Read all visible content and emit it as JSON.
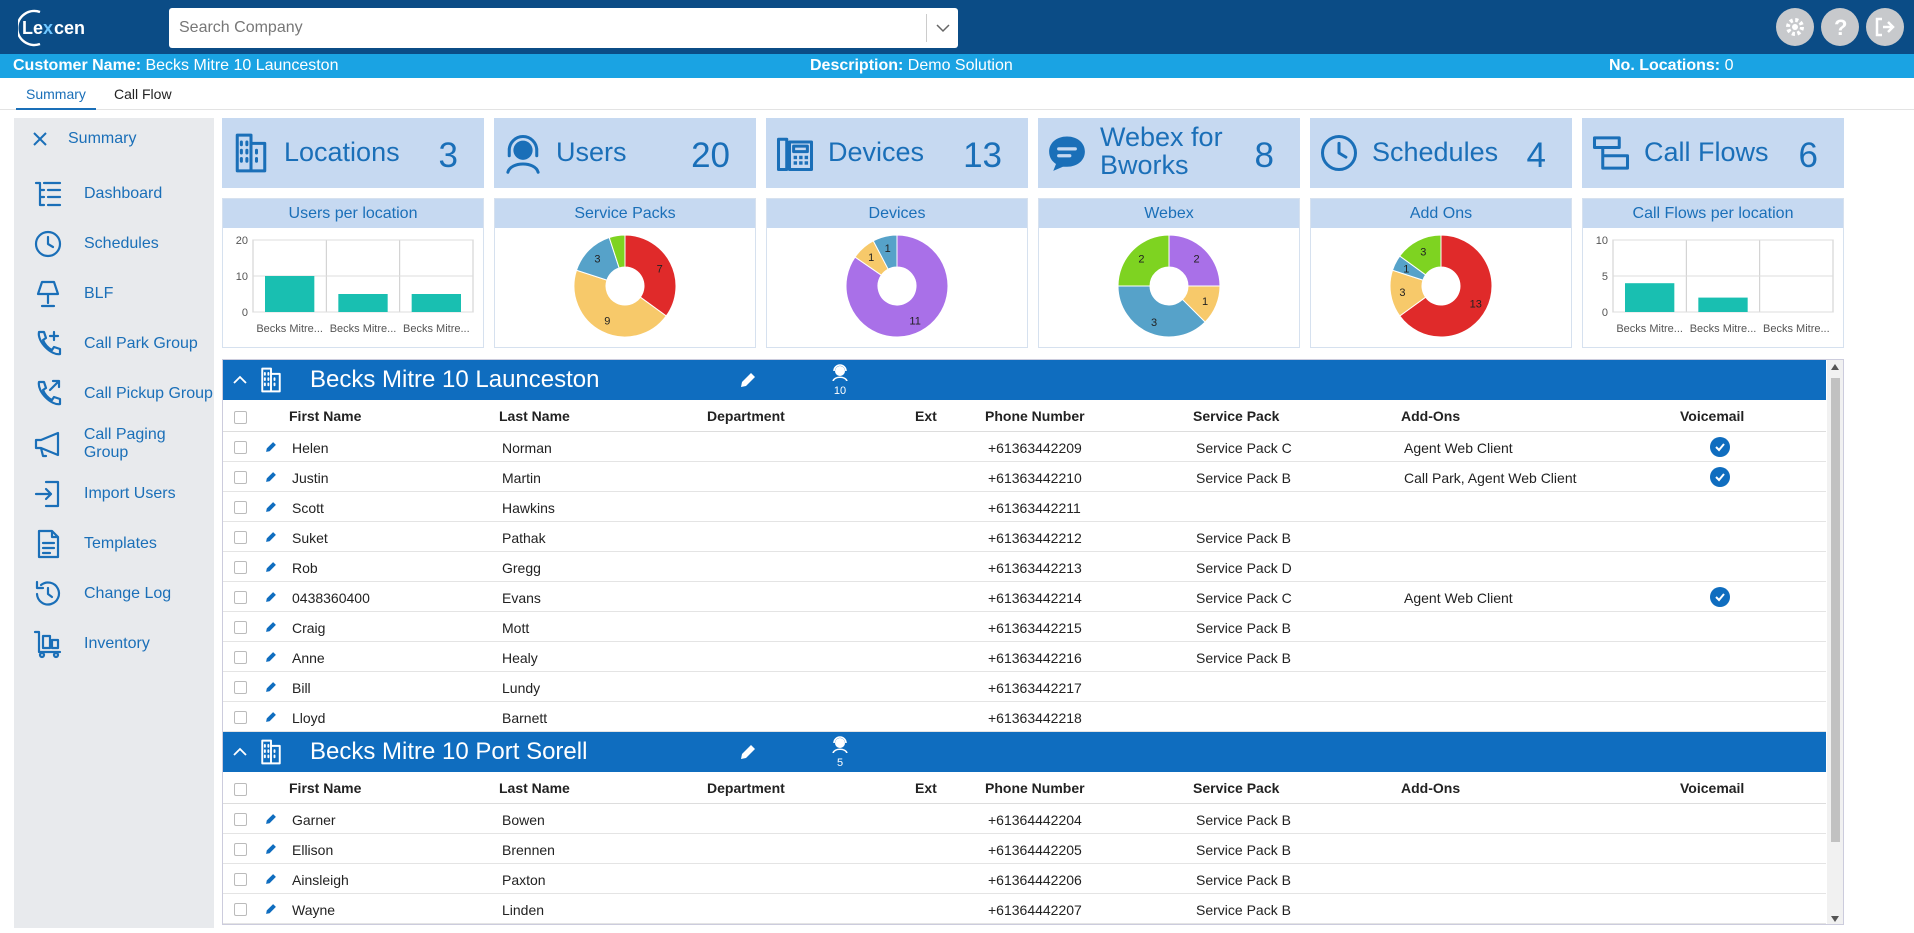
{
  "app": {
    "logo_text": "Lexcen"
  },
  "search": {
    "placeholder": "Search Company"
  },
  "infobar": {
    "customer_key": "Customer Name:",
    "customer_val": "Becks Mitre 10 Launceston",
    "desc_key": "Description:",
    "desc_val": "Demo Solution",
    "loc_key": "No. Locations:",
    "loc_val": "0"
  },
  "tabs": [
    "Summary",
    "Call Flow"
  ],
  "sidebar": {
    "header": "Summary",
    "items": [
      {
        "label": "Dashboard",
        "icon": "dashboard-icon"
      },
      {
        "label": "Schedules",
        "icon": "clock-icon"
      },
      {
        "label": "BLF",
        "icon": "lamp-icon"
      },
      {
        "label": "Call Park Group",
        "icon": "phone-plus-icon"
      },
      {
        "label": "Call Pickup Group",
        "icon": "phone-arrow-icon"
      },
      {
        "label": "Call Paging Group",
        "icon": "megaphone-icon"
      },
      {
        "label": "Import Users",
        "icon": "import-icon"
      },
      {
        "label": "Templates",
        "icon": "document-icon"
      },
      {
        "label": "Change Log",
        "icon": "history-icon"
      },
      {
        "label": "Inventory",
        "icon": "trolley-icon"
      }
    ]
  },
  "cards": [
    {
      "label": "Locations",
      "value": "3",
      "icon": "building-icon"
    },
    {
      "label": "Users",
      "value": "20",
      "icon": "headset-user-icon"
    },
    {
      "label": "Devices",
      "value": "13",
      "icon": "desk-phone-icon"
    },
    {
      "label": "Webex for Bworks",
      "value": "8",
      "icon": "chat-icon"
    },
    {
      "label": "Schedules",
      "value": "4",
      "icon": "clock-icon"
    },
    {
      "label": "Call Flows",
      "value": "6",
      "icon": "call-flow-icon"
    }
  ],
  "chart_data": [
    {
      "type": "bar",
      "title": "Users per location",
      "categories": [
        "Becks Mitre...",
        "Becks Mitre...",
        "Becks Mitre..."
      ],
      "values": [
        10,
        5,
        5
      ],
      "ylim": [
        0,
        20
      ],
      "yticks": [
        0,
        10,
        20
      ],
      "color": "#19bfb1"
    },
    {
      "type": "pie",
      "title": "Service Packs",
      "values": [
        7,
        9,
        3,
        1
      ],
      "labels": [
        "7",
        "9",
        "3",
        ""
      ],
      "colors": [
        "#e02a2a",
        "#f7c96a",
        "#56a2c9",
        "#7ed321"
      ]
    },
    {
      "type": "pie",
      "title": "Devices",
      "values": [
        11,
        1,
        1
      ],
      "labels": [
        "11",
        "1",
        "1"
      ],
      "colors": [
        "#a970e8",
        "#f7c96a",
        "#56a2c9"
      ]
    },
    {
      "type": "pie",
      "title": "Webex",
      "values": [
        2,
        1,
        3,
        2
      ],
      "labels": [
        "2",
        "1",
        "3",
        "2"
      ],
      "colors": [
        "#a970e8",
        "#f7c96a",
        "#56a2c9",
        "#7ed321"
      ]
    },
    {
      "type": "pie",
      "title": "Add Ons",
      "values": [
        13,
        3,
        1,
        3
      ],
      "labels": [
        "13",
        "3",
        "1",
        "3"
      ],
      "colors": [
        "#e02a2a",
        "#f7c96a",
        "#56a2c9",
        "#7ed321"
      ]
    },
    {
      "type": "bar",
      "title": "Call Flows per location",
      "categories": [
        "Becks Mitre...",
        "Becks Mitre...",
        "Becks Mitre..."
      ],
      "values": [
        4,
        2,
        0
      ],
      "ylim": [
        0,
        10
      ],
      "yticks": [
        0,
        5,
        10
      ],
      "color": "#19bfb1"
    }
  ],
  "grid": {
    "columns": [
      "First Name",
      "Last Name",
      "Department",
      "Ext",
      "Phone Number",
      "Service Pack",
      "Add-Ons",
      "Voicemail"
    ],
    "locations": [
      {
        "name": "Becks Mitre 10 Launceston",
        "users": "10",
        "rows": [
          {
            "first": "Helen",
            "last": "Norman",
            "dept": "",
            "ext": "",
            "phone": "+61363442209",
            "pack": "Service Pack C",
            "addons": "Agent Web Client",
            "vm": true
          },
          {
            "first": "Justin",
            "last": "Martin",
            "dept": "",
            "ext": "",
            "phone": "+61363442210",
            "pack": "Service Pack B",
            "addons": "Call Park, Agent Web Client",
            "vm": true
          },
          {
            "first": "Scott",
            "last": "Hawkins",
            "dept": "",
            "ext": "",
            "phone": "+61363442211",
            "pack": "",
            "addons": "",
            "vm": false
          },
          {
            "first": "Suket",
            "last": "Pathak",
            "dept": "",
            "ext": "",
            "phone": "+61363442212",
            "pack": "Service Pack B",
            "addons": "",
            "vm": false
          },
          {
            "first": "Rob",
            "last": "Gregg",
            "dept": "",
            "ext": "",
            "phone": "+61363442213",
            "pack": "Service Pack D",
            "addons": "",
            "vm": false
          },
          {
            "first": "0438360400",
            "last": "Evans",
            "dept": "",
            "ext": "",
            "phone": "+61363442214",
            "pack": "Service Pack C",
            "addons": "Agent Web Client",
            "vm": true
          },
          {
            "first": "Craig",
            "last": "Mott",
            "dept": "",
            "ext": "",
            "phone": "+61363442215",
            "pack": "Service Pack B",
            "addons": "",
            "vm": false
          },
          {
            "first": "Anne",
            "last": "Healy",
            "dept": "",
            "ext": "",
            "phone": "+61363442216",
            "pack": "Service Pack B",
            "addons": "",
            "vm": false
          },
          {
            "first": "Bill",
            "last": "Lundy",
            "dept": "",
            "ext": "",
            "phone": "+61363442217",
            "pack": "",
            "addons": "",
            "vm": false
          },
          {
            "first": "Lloyd",
            "last": "Barnett",
            "dept": "",
            "ext": "",
            "phone": "+61363442218",
            "pack": "",
            "addons": "",
            "vm": false
          }
        ]
      },
      {
        "name": "Becks Mitre 10 Port Sorell",
        "users": "5",
        "rows": [
          {
            "first": "Garner",
            "last": "Bowen",
            "dept": "",
            "ext": "",
            "phone": "+61364442204",
            "pack": "Service Pack B",
            "addons": "",
            "vm": false
          },
          {
            "first": "Ellison",
            "last": "Brennen",
            "dept": "",
            "ext": "",
            "phone": "+61364442205",
            "pack": "Service Pack B",
            "addons": "",
            "vm": false
          },
          {
            "first": "Ainsleigh",
            "last": "Paxton",
            "dept": "",
            "ext": "",
            "phone": "+61364442206",
            "pack": "Service Pack B",
            "addons": "",
            "vm": false
          },
          {
            "first": "Wayne",
            "last": "Linden",
            "dept": "",
            "ext": "",
            "phone": "+61364442207",
            "pack": "Service Pack B",
            "addons": "",
            "vm": false
          }
        ]
      }
    ]
  }
}
